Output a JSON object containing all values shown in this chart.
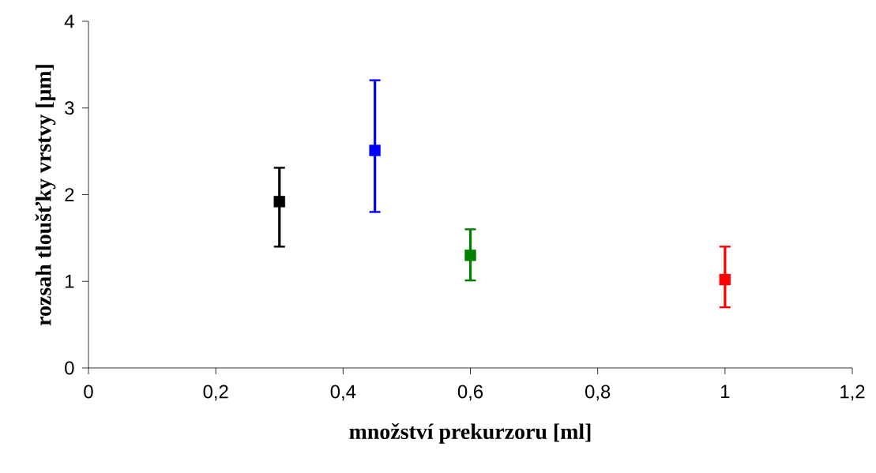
{
  "chart_data": {
    "type": "scatter",
    "xlabel": "množství prekurzoru [ml]",
    "ylabel": "rozsah tloušťky vrstvy [μm]",
    "x": [
      0.3,
      0.45,
      0.6,
      1.0
    ],
    "values": [
      1.92,
      2.51,
      1.3,
      1.02
    ],
    "errors": [
      [
        1.4,
        2.31
      ],
      [
        1.8,
        3.32
      ],
      [
        1.01,
        1.6
      ],
      [
        0.7,
        1.4
      ]
    ],
    "colors": [
      "#000000",
      "#0000ff",
      "#008000",
      "#ff0000"
    ],
    "xlim": [
      0,
      1.2
    ],
    "xticks": [
      0,
      {
        "value": 0.2,
        "label": "0,2"
      },
      {
        "value": 0.4,
        "label": "0,4"
      },
      {
        "value": 0.6,
        "label": "0,6"
      },
      {
        "value": 0.8,
        "label": "0,8"
      },
      1,
      {
        "value": 1.2,
        "label": "1,2"
      }
    ],
    "ylim": [
      0,
      4
    ],
    "yticks": [
      0,
      1,
      2,
      3,
      4
    ],
    "grid": false,
    "legend": false
  }
}
